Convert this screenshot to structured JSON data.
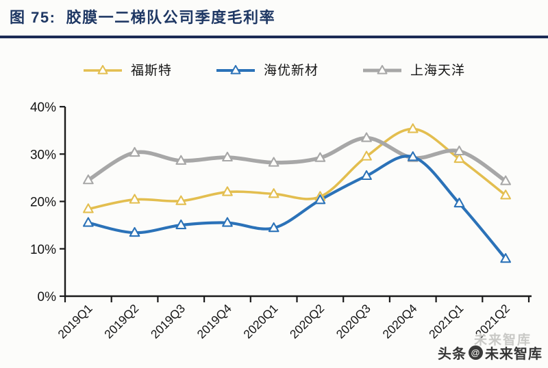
{
  "header": {
    "title": "图 75:  胶膜一二梯队公司季度毛利率"
  },
  "theme": {
    "title_color": "#1F3864",
    "rule_color": "#1B2A55",
    "axis_color": "#1A1A1A",
    "tick_label_color": "#141414",
    "background": "#FCFCFA",
    "marker_fill": "#FFFEFB"
  },
  "chart_data": {
    "type": "line",
    "title": "胶膜一二梯队公司季度毛利率",
    "categories": [
      "2019Q1",
      "2019Q2",
      "2019Q3",
      "2019Q4",
      "2020Q1",
      "2020Q2",
      "2020Q3",
      "2020Q4",
      "2021Q1",
      "2021Q2"
    ],
    "series": [
      {
        "name": "福斯特",
        "color": "#E3BE4F",
        "values": [
          18.4,
          20.4,
          20.1,
          22.0,
          21.6,
          21.0,
          29.5,
          35.3,
          29.0,
          21.3
        ]
      },
      {
        "name": "海优新材",
        "color": "#2B72B8",
        "values": [
          15.5,
          13.4,
          15.0,
          15.5,
          14.4,
          20.3,
          25.4,
          29.4,
          19.6,
          7.9
        ]
      },
      {
        "name": "上海天洋",
        "color": "#A7A7A7",
        "values": [
          24.5,
          30.3,
          28.6,
          29.3,
          28.2,
          29.2,
          33.4,
          29.2,
          30.6,
          24.3
        ]
      }
    ],
    "ylim": [
      0,
      40
    ],
    "yticks": [
      "0%",
      "10%",
      "20%",
      "30%",
      "40%"
    ],
    "xlabel": "",
    "ylabel": "",
    "legend_position": "top",
    "grid": false,
    "marker": "open-triangle"
  },
  "watermark": {
    "ghost_text": "未来智库",
    "prefix": "头条",
    "logo_glyph": "@",
    "suffix": "未来智库"
  }
}
